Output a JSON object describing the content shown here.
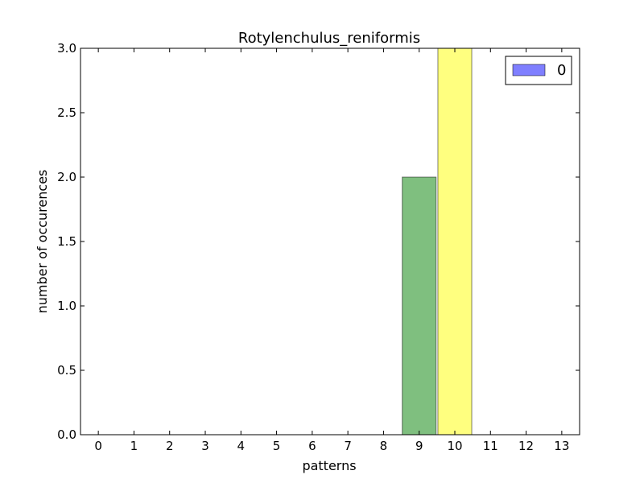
{
  "chart_data": {
    "type": "bar",
    "title": "Rotylenchulus_reniformis",
    "xlabel": "patterns",
    "ylabel": "number of occurences",
    "categories": [
      "0",
      "1",
      "2",
      "3",
      "4",
      "5",
      "6",
      "7",
      "8",
      "9",
      "10",
      "11",
      "12",
      "13"
    ],
    "values": [
      0,
      0,
      0,
      0,
      0,
      0,
      0,
      0,
      0,
      2,
      3,
      0,
      0,
      0
    ],
    "bar_colors": [
      "#0000ff",
      "#0000ff",
      "#0000ff",
      "#0000ff",
      "#0000ff",
      "#0000ff",
      "#0000ff",
      "#0000ff",
      "#0000ff",
      "#008000",
      "#ffff00",
      "#0000ff",
      "#0000ff",
      "#0000ff"
    ],
    "bar_opacity": 0.5,
    "xlim": [
      -0.5,
      13.5
    ],
    "ylim": [
      0,
      3
    ],
    "yticks": [
      "0.0",
      "0.5",
      "1.0",
      "1.5",
      "2.0",
      "2.5",
      "3.0"
    ],
    "grid": false,
    "legend": {
      "placement": "top-right",
      "entries": [
        {
          "label": "0",
          "color": "#0000ff"
        }
      ]
    }
  }
}
